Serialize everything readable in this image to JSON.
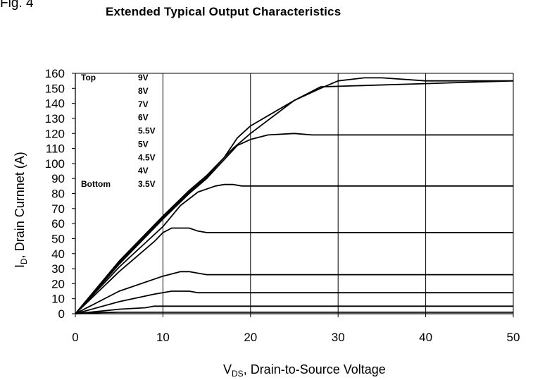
{
  "figure_label": "Fig. 4",
  "chart_data": {
    "type": "line",
    "title": "Extended Typical Output Characteristics",
    "xlabel": {
      "main": "V",
      "sub": "DS",
      "rest": ", Drain-to-Source Voltage"
    },
    "ylabel": {
      "main": "I",
      "sub": "D",
      "rest": ", Drain Curnnet (A)"
    },
    "xlim": [
      0,
      50
    ],
    "ylim": [
      0,
      160
    ],
    "xticks": [
      0,
      10,
      20,
      30,
      40,
      50
    ],
    "yticks": [
      0,
      10,
      20,
      30,
      40,
      50,
      60,
      70,
      80,
      90,
      100,
      110,
      120,
      130,
      140,
      150,
      160
    ],
    "grid": true,
    "legend": {
      "top_label": "Top",
      "bottom_label": "Bottom",
      "entries": [
        "9V",
        "8V",
        "7V",
        "6V",
        "5.5V",
        "5V",
        "4.5V",
        "4V",
        "3.5V"
      ]
    },
    "series": [
      {
        "name": "9V",
        "x": [
          0,
          5,
          10,
          13,
          15,
          18,
          20,
          25,
          28,
          30,
          33,
          35,
          40,
          50
        ],
        "y": [
          0,
          35,
          65,
          82,
          92,
          110,
          120,
          142,
          150,
          155,
          157,
          157,
          155,
          155
        ]
      },
      {
        "name": "8V",
        "x": [
          0,
          5,
          10,
          13,
          15,
          17,
          18.5,
          20,
          25,
          28,
          50
        ],
        "y": [
          0,
          34,
          64,
          81,
          91,
          104,
          117,
          125,
          142,
          151,
          155
        ]
      },
      {
        "name": "7V",
        "x": [
          0,
          5,
          10,
          13,
          15,
          18.5,
          20,
          22,
          25,
          27,
          50
        ],
        "y": [
          0,
          33,
          63,
          80,
          90,
          112,
          116,
          119,
          120,
          119,
          119
        ]
      },
      {
        "name": "6V",
        "x": [
          0,
          5,
          10,
          12,
          14,
          16,
          17,
          18,
          19,
          50
        ],
        "y": [
          0,
          31,
          58,
          72,
          81,
          85,
          86,
          86,
          85,
          85
        ]
      },
      {
        "name": "5.5V",
        "x": [
          0,
          5,
          9,
          10,
          11,
          12,
          13,
          14,
          15,
          50
        ],
        "y": [
          0,
          28,
          48,
          54,
          57,
          57,
          57,
          55,
          54,
          54
        ]
      },
      {
        "name": "5V",
        "x": [
          0,
          5,
          10,
          12,
          13,
          14,
          15,
          50
        ],
        "y": [
          0,
          15,
          25,
          28,
          28,
          27,
          26,
          26
        ]
      },
      {
        "name": "4.5V",
        "x": [
          0,
          5,
          9,
          11,
          13,
          14,
          50
        ],
        "y": [
          0,
          8,
          13,
          15,
          15,
          14,
          14
        ]
      },
      {
        "name": "4V",
        "x": [
          0,
          5,
          8,
          9,
          50
        ],
        "y": [
          0,
          3,
          4,
          5,
          5
        ]
      },
      {
        "name": "3.5V",
        "x": [
          0,
          3,
          5,
          50
        ],
        "y": [
          0,
          0.8,
          1,
          1
        ]
      }
    ]
  }
}
